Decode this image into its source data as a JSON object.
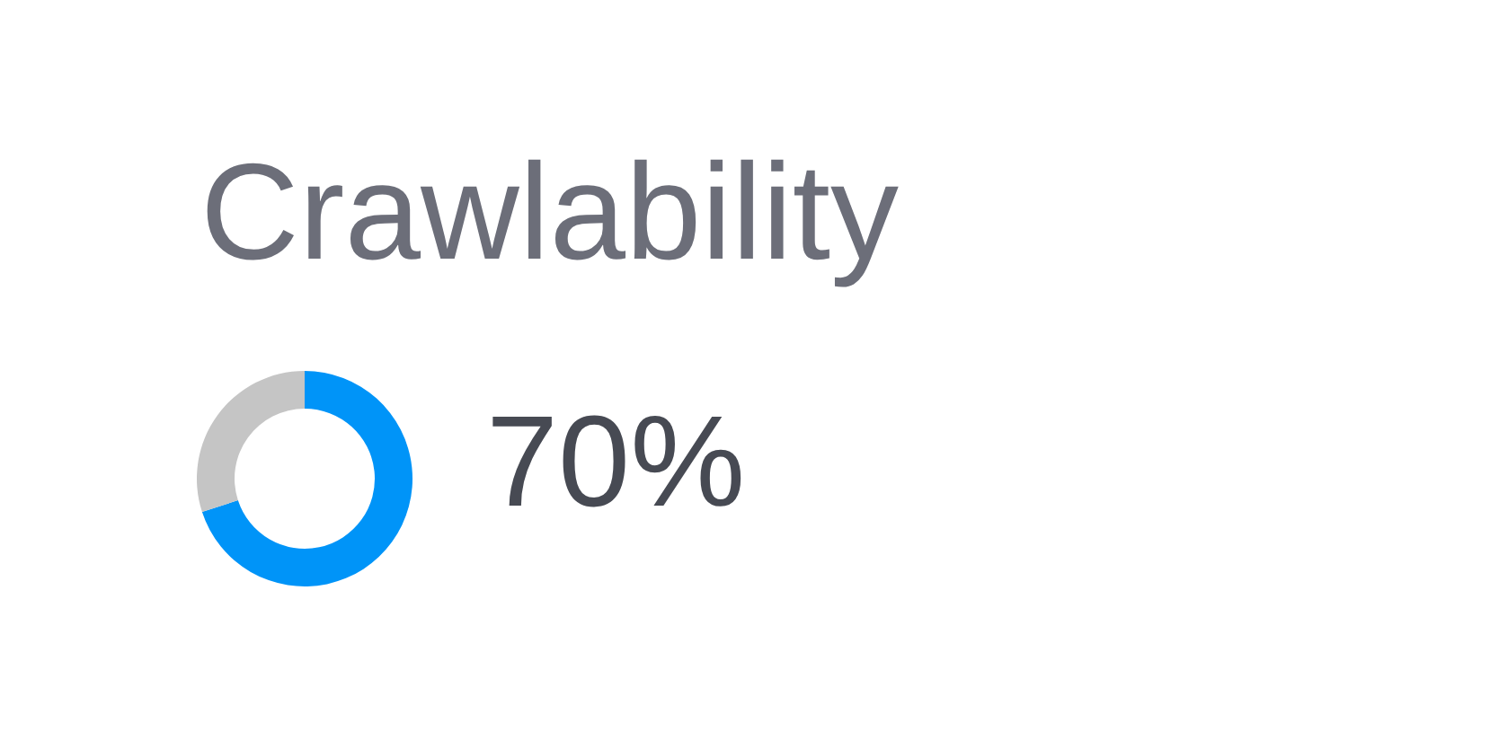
{
  "chart_data": {
    "type": "donut",
    "title": "Crawlability",
    "categories": [
      null,
      null
    ],
    "values": [
      70,
      30
    ],
    "colors": [
      "#0094f8",
      "#c5c5c5"
    ],
    "value_labels": [
      "70%",
      null
    ]
  }
}
